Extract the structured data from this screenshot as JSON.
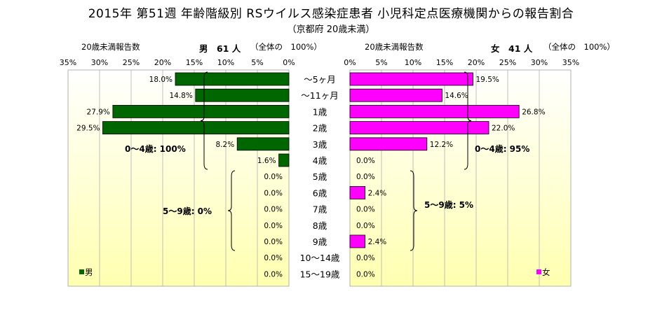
{
  "title": "2015年 第51週 年齢階級別 RSウイルス感染症患者 小児科定点医療機関からの報告割合",
  "subtitle": "（京都府 20歳未満）",
  "left_header": {
    "under20_label": "20歳未満報告数",
    "sex_count": "男　61 人",
    "total_pct": "（全体の　100%）"
  },
  "right_header": {
    "under20_label": "20歳未満報告数",
    "sex_count": "女　41 人",
    "total_pct": "（全体の　100%）"
  },
  "colors": {
    "male": "#006600",
    "female": "#ff00ff",
    "plot_bg_top": "#ffffff",
    "plot_bg_bottom": "#ffffb0",
    "grid": "#b0b0b0"
  },
  "chart_data": {
    "type": "bar",
    "orientation": "horizontal-butterfly",
    "categories": [
      "～5ヶ月",
      "～11ヶ月",
      "1歳",
      "2歳",
      "3歳",
      "4歳",
      "5歳",
      "6歳",
      "7歳",
      "8歳",
      "9歳",
      "10～14歳",
      "15～19歳"
    ],
    "xlim": [
      0,
      35
    ],
    "ticks": [
      "0%",
      "5%",
      "10%",
      "15%",
      "20%",
      "25%",
      "30%",
      "35%"
    ],
    "grid": true,
    "series": [
      {
        "name": "男",
        "side": "left",
        "values": [
          18.0,
          14.8,
          27.9,
          29.5,
          8.2,
          1.6,
          0.0,
          0.0,
          0.0,
          0.0,
          0.0,
          0.0,
          0.0
        ],
        "labels": [
          "18.0%",
          "14.8%",
          "27.9%",
          "29.5%",
          "8.2%",
          "1.6%",
          "0.0%",
          "0.0%",
          "0.0%",
          "0.0%",
          "0.0%",
          "0.0%",
          "0.0%"
        ]
      },
      {
        "name": "女",
        "side": "right",
        "values": [
          19.5,
          14.6,
          26.8,
          22.0,
          12.2,
          0.0,
          0.0,
          2.4,
          0.0,
          0.0,
          2.4,
          0.0,
          0.0
        ],
        "labels": [
          "19.5%",
          "14.6%",
          "26.8%",
          "22.0%",
          "12.2%",
          "0.0%",
          "0.0%",
          "2.4%",
          "0.0%",
          "0.0%",
          "2.4%",
          "0.0%",
          "0.0%"
        ]
      }
    ],
    "annotations": {
      "male_0_4": "0～4歳: 100%",
      "male_5_9": "5～9歳: 0%",
      "female_0_4": "0～4歳: 95%",
      "female_5_9": "5～9歳: 5%"
    },
    "legend": {
      "male": "男",
      "female": "女"
    }
  }
}
